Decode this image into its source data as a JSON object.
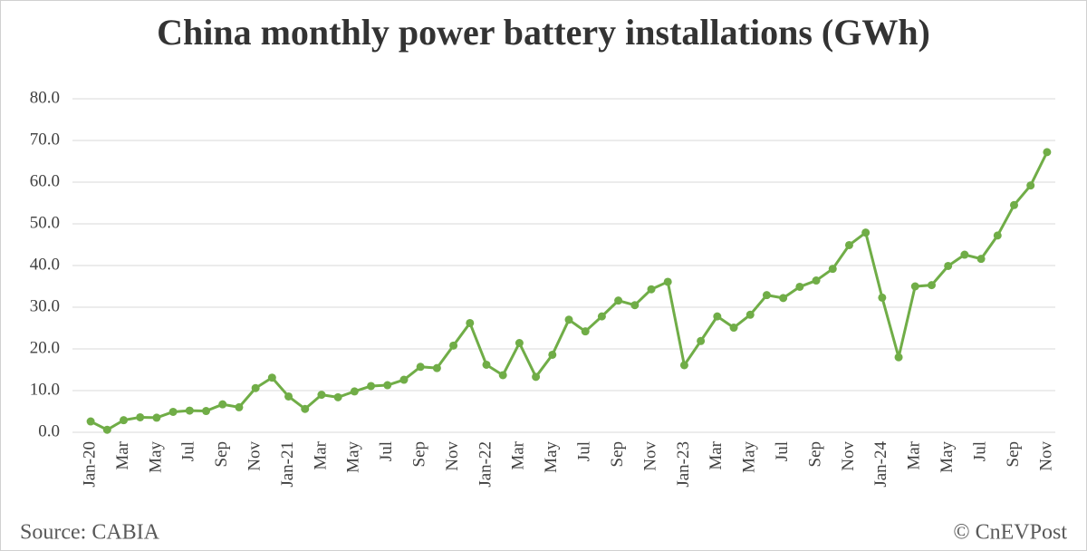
{
  "chart_data": {
    "type": "line",
    "title": "China monthly power battery installations (GWh)",
    "annotations": [
      "Source: CABIA",
      "© CnEVPost"
    ],
    "categories": [
      "Jan-20",
      null,
      "Mar",
      null,
      "May",
      null,
      "Jul",
      null,
      "Sep",
      null,
      "Nov",
      null,
      "Jan-21",
      null,
      "Mar",
      null,
      "May",
      null,
      "Jul",
      null,
      "Sep",
      null,
      "Nov",
      null,
      "Jan-22",
      null,
      "Mar",
      null,
      "May",
      null,
      "Jul",
      null,
      "Sep",
      null,
      "Nov",
      null,
      "Jan-23",
      null,
      "Mar",
      null,
      "May",
      null,
      "Jul",
      null,
      "Sep",
      null,
      "Nov",
      null,
      "Jan-24",
      null,
      "Mar",
      null,
      "May",
      null,
      "Jul",
      null,
      "Sep",
      null,
      "Nov"
    ],
    "series": [
      {
        "name": "Installations",
        "color": "#70ad47",
        "values": [
          2.6,
          0.6,
          2.9,
          3.6,
          3.5,
          4.9,
          5.2,
          5.1,
          6.7,
          6.0,
          10.6,
          13.1,
          8.6,
          5.6,
          9.0,
          8.4,
          9.8,
          11.1,
          11.3,
          12.6,
          15.7,
          15.4,
          20.8,
          26.2,
          16.2,
          13.7,
          21.4,
          13.3,
          18.6,
          27.0,
          24.2,
          27.8,
          31.6,
          30.5,
          34.3,
          36.1,
          16.1,
          21.9,
          27.8,
          25.1,
          28.2,
          32.9,
          32.2,
          34.9,
          36.4,
          39.2,
          44.9,
          47.9,
          32.3,
          18.0,
          35.0,
          35.3,
          39.9,
          42.6,
          41.6,
          47.2,
          54.5,
          59.2,
          67.2
        ]
      }
    ],
    "ylim": [
      0,
      80
    ],
    "yticks": [
      {
        "value": 0,
        "label": "0.0"
      },
      {
        "value": 10,
        "label": "10.0"
      },
      {
        "value": 20,
        "label": "20.0"
      },
      {
        "value": 30,
        "label": "30.0"
      },
      {
        "value": 40,
        "label": "40.0"
      },
      {
        "value": 50,
        "label": "50.0"
      },
      {
        "value": 60,
        "label": "60.0"
      },
      {
        "value": 70,
        "label": "70.0"
      },
      {
        "value": 80,
        "label": "80.0"
      }
    ],
    "grid": true
  }
}
